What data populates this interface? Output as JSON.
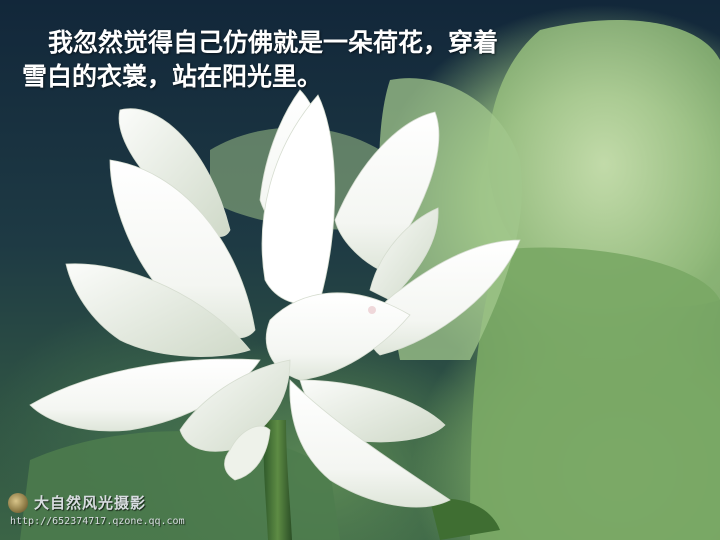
{
  "caption": {
    "line1": "我忽然觉得自己仿佛就是一朵荷花，穿着",
    "line2": "雪白的衣裳，站在阳光里。"
  },
  "watermark": {
    "title": "大自然风光摄影",
    "url": "http://652374717.qzone.qq.com"
  },
  "colors": {
    "petal": "#ffffff",
    "leaf": "#8fb67a",
    "background_dark": "#12273a"
  }
}
